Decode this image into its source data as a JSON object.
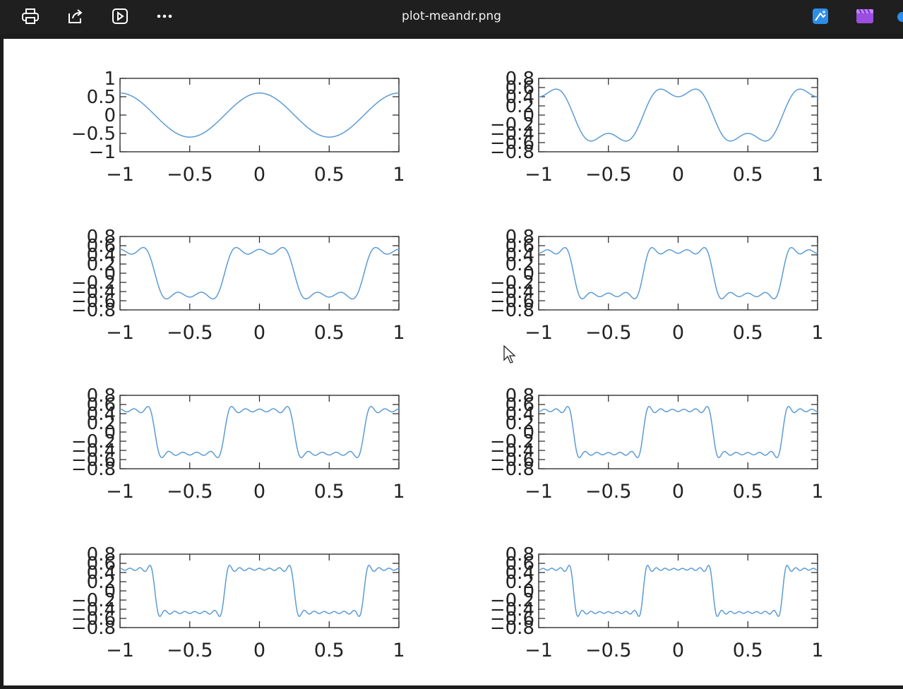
{
  "window": {
    "title": "plot-meandr.png",
    "toolbar": {
      "print_icon": "printer-icon",
      "share_icon": "share-icon",
      "slideshow_icon": "slideshow-icon",
      "more_icon": "more-icon",
      "edit_app_icon": "edit-app-icon",
      "clipchamp_icon": "video-editor-icon"
    }
  },
  "colors": {
    "toolbar_bg": "#1f1f1f",
    "plot_line": "#5b9bd5",
    "canvas_bg": "#ffffff"
  },
  "chart_data": [
    {
      "type": "line",
      "x_range": [
        -1,
        1
      ],
      "ylim": [
        -1,
        1
      ],
      "x_ticks": [
        "−1",
        "−0.5",
        "0",
        "0.5",
        "1"
      ],
      "y_ticks": [
        "1",
        "0.5",
        "0",
        "−0.5",
        "−1"
      ],
      "harmonics": 1,
      "grid": false
    },
    {
      "type": "line",
      "x_range": [
        -1,
        1
      ],
      "ylim": [
        -0.8,
        0.8
      ],
      "x_ticks": [
        "−1",
        "−0.5",
        "0",
        "0.5",
        "1"
      ],
      "y_ticks": [
        "0.8",
        "0.6",
        "0.4",
        "0.2",
        "0",
        "−0.2",
        "−0.4",
        "−0.6",
        "−0.8"
      ],
      "harmonics": 2,
      "grid": false
    },
    {
      "type": "line",
      "x_range": [
        -1,
        1
      ],
      "ylim": [
        -0.8,
        0.8
      ],
      "x_ticks": [
        "−1",
        "−0.5",
        "0",
        "0.5",
        "1"
      ],
      "y_ticks": [
        "0.8",
        "0.6",
        "0.4",
        "0.2",
        "0",
        "−0.2",
        "−0.4",
        "−0.6",
        "−0.8"
      ],
      "harmonics": 3,
      "grid": false
    },
    {
      "type": "line",
      "x_range": [
        -1,
        1
      ],
      "ylim": [
        -0.8,
        0.8
      ],
      "x_ticks": [
        "−1",
        "−0.5",
        "0",
        "0.5",
        "1"
      ],
      "y_ticks": [
        "0.8",
        "0.6",
        "0.4",
        "0.2",
        "0",
        "−0.2",
        "−0.4",
        "−0.6",
        "−0.8"
      ],
      "harmonics": 4,
      "grid": false
    },
    {
      "type": "line",
      "x_range": [
        -1,
        1
      ],
      "ylim": [
        -0.8,
        0.8
      ],
      "x_ticks": [
        "−1",
        "−0.5",
        "0",
        "0.5",
        "1"
      ],
      "y_ticks": [
        "0.8",
        "0.6",
        "0.4",
        "0.2",
        "0",
        "−0.2",
        "−0.4",
        "−0.6",
        "−0.8"
      ],
      "harmonics": 5,
      "grid": false
    },
    {
      "type": "line",
      "x_range": [
        -1,
        1
      ],
      "ylim": [
        -0.8,
        0.8
      ],
      "x_ticks": [
        "−1",
        "−0.5",
        "0",
        "0.5",
        "1"
      ],
      "y_ticks": [
        "0.8",
        "0.6",
        "0.4",
        "0.2",
        "0",
        "−0.2",
        "−0.4",
        "−0.6",
        "−0.8"
      ],
      "harmonics": 6,
      "grid": false
    },
    {
      "type": "line",
      "x_range": [
        -1,
        1
      ],
      "ylim": [
        -0.8,
        0.8
      ],
      "x_ticks": [
        "−1",
        "−0.5",
        "0",
        "0.5",
        "1"
      ],
      "y_ticks": [
        "0.8",
        "0.6",
        "0.4",
        "0.2",
        "0",
        "−0.2",
        "−0.4",
        "−0.6",
        "−0.8"
      ],
      "harmonics": 7,
      "grid": false
    },
    {
      "type": "line",
      "x_range": [
        -1,
        1
      ],
      "ylim": [
        -0.8,
        0.8
      ],
      "x_ticks": [
        "−1",
        "−0.5",
        "0",
        "0.5",
        "1"
      ],
      "y_ticks": [
        "0.8",
        "0.6",
        "0.4",
        "0.2",
        "0",
        "−0.2",
        "−0.4",
        "−0.6",
        "−0.8"
      ],
      "harmonics": 8,
      "grid": false
    }
  ]
}
